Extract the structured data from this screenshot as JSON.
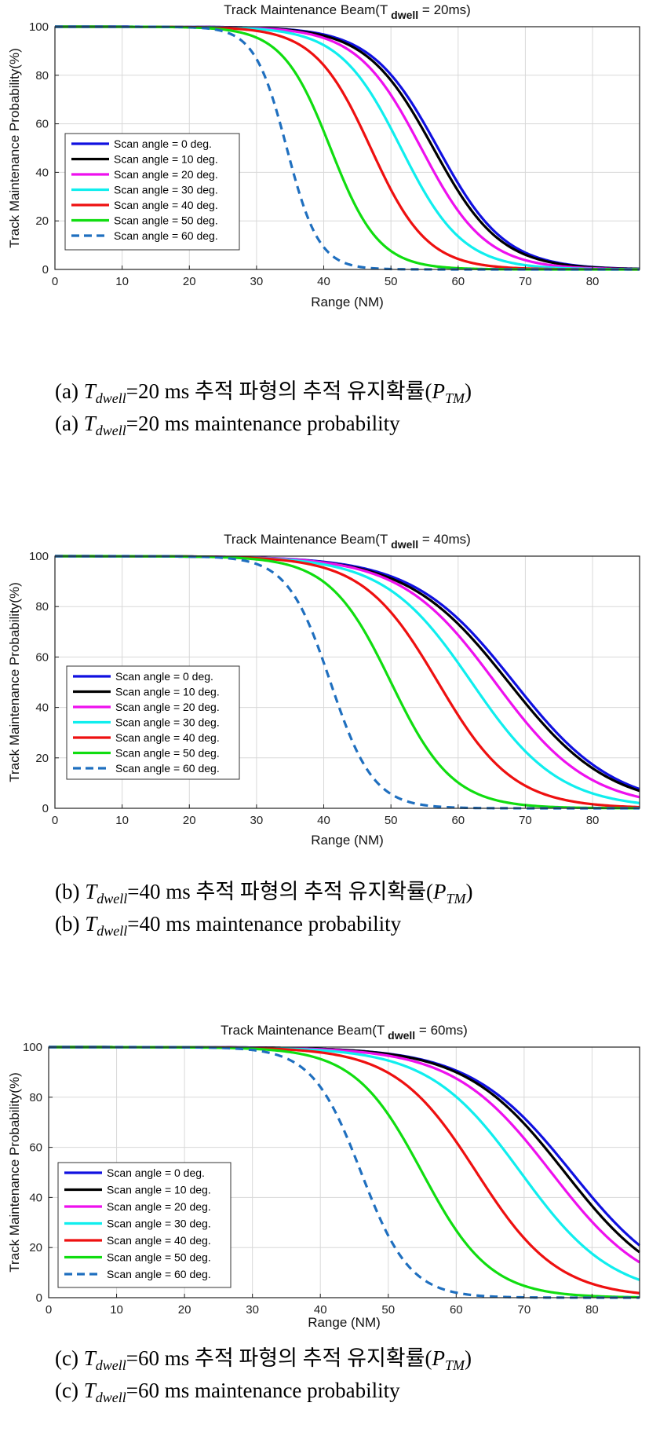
{
  "chart_data": [
    {
      "type": "line",
      "title": "Track Maintenance Beam(T",
      "title_sub": "dwell",
      "title_end": " = 20ms)",
      "xlabel": "Range (NM)",
      "ylabel": "Track Maintenance Probability(%)",
      "xlim": [
        0,
        87
      ],
      "ylim": [
        0,
        100
      ],
      "xticks": [
        0,
        10,
        20,
        30,
        40,
        50,
        60,
        70,
        80
      ],
      "yticks": [
        0,
        20,
        40,
        60,
        80,
        100
      ],
      "grid": true,
      "legend_position": "middle-left",
      "series": [
        {
          "name": "Scan angle = 0 deg.",
          "color": "#1010e0",
          "dash": false,
          "mid": 57.0,
          "width": 5.0
        },
        {
          "name": "Scan angle = 10 deg.",
          "color": "#000000",
          "dash": false,
          "mid": 56.3,
          "width": 5.0
        },
        {
          "name": "Scan angle = 20 deg.",
          "color": "#ee10ee",
          "dash": false,
          "mid": 54.5,
          "width": 4.8
        },
        {
          "name": "Scan angle = 30 deg.",
          "color": "#10eeee",
          "dash": false,
          "mid": 51.5,
          "width": 4.6
        },
        {
          "name": "Scan angle = 40 deg.",
          "color": "#ee1010",
          "dash": false,
          "mid": 47.0,
          "width": 4.2
        },
        {
          "name": "Scan angle = 50 deg.",
          "color": "#10dd10",
          "dash": false,
          "mid": 41.0,
          "width": 3.6
        },
        {
          "name": "Scan angle = 60 deg.",
          "color": "#1f6fbf",
          "dash": true,
          "mid": 34.5,
          "width": 2.4
        }
      ]
    },
    {
      "type": "line",
      "title": "Track Maintenance Beam(T",
      "title_sub": "dwell",
      "title_end": " = 40ms)",
      "xlabel": "Range (NM)",
      "ylabel": "Track Maintenance Probability(%)",
      "xlim": [
        0,
        87
      ],
      "ylim": [
        0,
        100
      ],
      "xticks": [
        0,
        10,
        20,
        30,
        40,
        50,
        60,
        70,
        80
      ],
      "yticks": [
        0,
        20,
        40,
        60,
        80,
        100
      ],
      "grid": true,
      "legend_position": "middle-left",
      "series": [
        {
          "name": "Scan angle = 0 deg.",
          "color": "#1010e0",
          "dash": false,
          "mid": 68.3,
          "width": 7.5
        },
        {
          "name": "Scan angle = 10 deg.",
          "color": "#000000",
          "dash": false,
          "mid": 67.5,
          "width": 7.5
        },
        {
          "name": "Scan angle = 20 deg.",
          "color": "#ee10ee",
          "dash": false,
          "mid": 65.5,
          "width": 7.0
        },
        {
          "name": "Scan angle = 30 deg.",
          "color": "#10eeee",
          "dash": false,
          "mid": 62.0,
          "width": 6.5
        },
        {
          "name": "Scan angle = 40 deg.",
          "color": "#ee1010",
          "dash": false,
          "mid": 57.0,
          "width": 5.6
        },
        {
          "name": "Scan angle = 50 deg.",
          "color": "#10dd10",
          "dash": false,
          "mid": 50.0,
          "width": 4.6
        },
        {
          "name": "Scan angle = 60 deg.",
          "color": "#1f6fbf",
          "dash": true,
          "mid": 41.0,
          "width": 3.2
        }
      ]
    },
    {
      "type": "line",
      "title": "Track Maintenance Beam(T",
      "title_sub": "dwell",
      "title_end": " = 60ms)",
      "xlabel": "Range (NM)",
      "ylabel": "Track Maintenance Probability(%)",
      "xlim": [
        0,
        87
      ],
      "ylim": [
        0,
        100
      ],
      "xticks": [
        0,
        10,
        20,
        30,
        40,
        50,
        60,
        70,
        80
      ],
      "yticks": [
        0,
        20,
        40,
        60,
        80,
        100
      ],
      "grid": true,
      "legend_position": "lower-left",
      "series": [
        {
          "name": "Scan angle = 0 deg.",
          "color": "#1010e0",
          "dash": false,
          "mid": 77.0,
          "width": 7.5
        },
        {
          "name": "Scan angle = 10 deg.",
          "color": "#000000",
          "dash": false,
          "mid": 76.0,
          "width": 7.3
        },
        {
          "name": "Scan angle = 20 deg.",
          "color": "#ee10ee",
          "dash": false,
          "mid": 74.0,
          "width": 7.2
        },
        {
          "name": "Scan angle = 30 deg.",
          "color": "#10eeee",
          "dash": false,
          "mid": 69.5,
          "width": 6.8
        },
        {
          "name": "Scan angle = 40 deg.",
          "color": "#ee1010",
          "dash": false,
          "mid": 63.0,
          "width": 6.0
        },
        {
          "name": "Scan angle = 50 deg.",
          "color": "#10dd10",
          "dash": false,
          "mid": 55.0,
          "width": 5.0
        },
        {
          "name": "Scan angle = 60 deg.",
          "color": "#1f6fbf",
          "dash": true,
          "mid": 46.0,
          "width": 3.6
        }
      ]
    }
  ],
  "captions": [
    {
      "label": "(a)",
      "t": "T",
      "sub": "dwell",
      "ko": "=20 ms 추적 파형의 추적 유지확률(",
      "p": "P",
      "psub": "TM",
      "close": ")",
      "en": "=20 ms maintenance probability"
    },
    {
      "label": "(b)",
      "t": "T",
      "sub": "dwell",
      "ko": "=40 ms 추적 파형의 추적 유지확률(",
      "p": "P",
      "psub": "TM",
      "close": ")",
      "en": "=40 ms maintenance probability"
    },
    {
      "label": "(c)",
      "t": "T",
      "sub": "dwell",
      "ko": "=60 ms 추적 파형의 추적 유지확률(",
      "p": "P",
      "psub": "TM",
      "close": ")",
      "en": "=60 ms maintenance probability"
    }
  ]
}
